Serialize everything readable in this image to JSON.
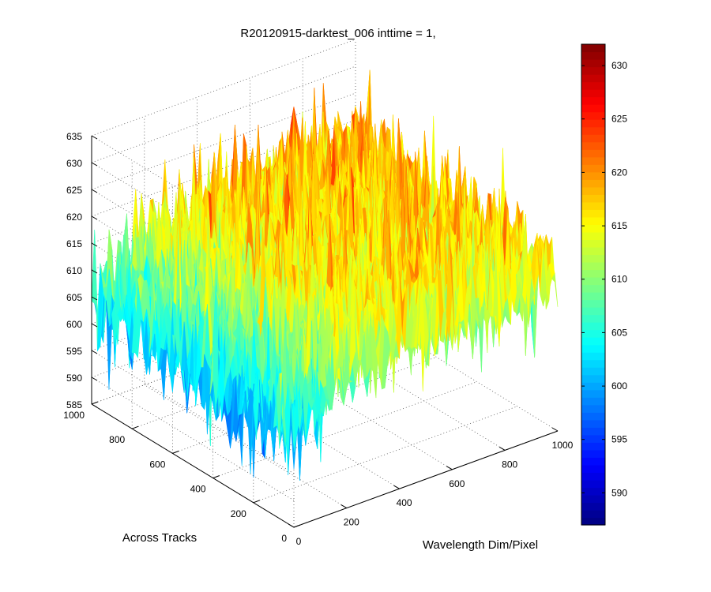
{
  "chart_data": {
    "type": "surface",
    "title": "R20120915-darktest_006 inttime = 1,",
    "xlabel": "Wavelength Dim/Pixel",
    "ylabel": "Across Tracks",
    "zlabel": "",
    "xlim": [
      0,
      1000
    ],
    "ylim": [
      0,
      1000
    ],
    "zlim": [
      585,
      635
    ],
    "x_ticks": [
      0,
      200,
      400,
      600,
      800,
      1000
    ],
    "y_ticks": [
      0,
      200,
      400,
      600,
      800,
      1000
    ],
    "z_ticks": [
      585,
      590,
      595,
      600,
      605,
      610,
      615,
      620,
      625,
      630,
      635
    ],
    "grid": true,
    "colormap": "jet",
    "colorbar": {
      "min": 587,
      "max": 632,
      "ticks": [
        590,
        595,
        600,
        605,
        610,
        615,
        620,
        625,
        630
      ],
      "placement": "right"
    },
    "surface_summary": {
      "typical_level": 614,
      "noise_range": [
        605,
        630
      ],
      "low_edge": "x near 0 (wavelength pixel), values down to about 588-600"
    }
  }
}
